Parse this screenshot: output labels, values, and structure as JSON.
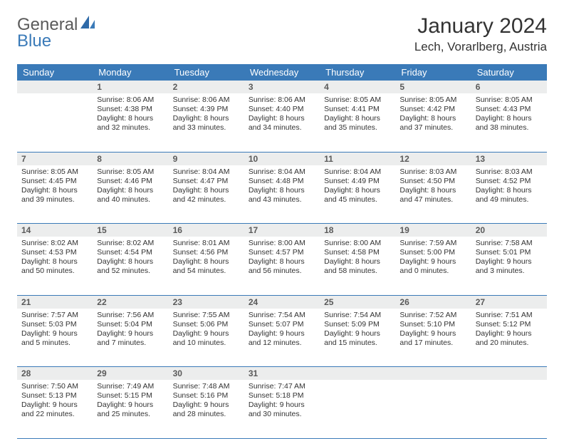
{
  "logo": {
    "text1": "General",
    "text2": "Blue"
  },
  "title": "January 2024",
  "location": "Lech, Vorarlberg, Austria",
  "colors": {
    "header_bg": "#3a7ab8",
    "header_text": "#ffffff",
    "daynum_bg": "#eceded",
    "daynum_text": "#5a5a5a",
    "cell_text": "#333333",
    "row_border": "#3a7ab8",
    "logo_gray": "#5a5a5a",
    "logo_blue": "#3a7ab8"
  },
  "fonts": {
    "title_size": 30,
    "location_size": 17,
    "dayheader_size": 13,
    "daynum_size": 12,
    "cell_size": 10.5
  },
  "day_headers": [
    "Sunday",
    "Monday",
    "Tuesday",
    "Wednesday",
    "Thursday",
    "Friday",
    "Saturday"
  ],
  "weeks": [
    [
      null,
      {
        "n": "1",
        "sr": "8:06 AM",
        "ss": "4:38 PM",
        "dl": "8 hours and 32 minutes."
      },
      {
        "n": "2",
        "sr": "8:06 AM",
        "ss": "4:39 PM",
        "dl": "8 hours and 33 minutes."
      },
      {
        "n": "3",
        "sr": "8:06 AM",
        "ss": "4:40 PM",
        "dl": "8 hours and 34 minutes."
      },
      {
        "n": "4",
        "sr": "8:05 AM",
        "ss": "4:41 PM",
        "dl": "8 hours and 35 minutes."
      },
      {
        "n": "5",
        "sr": "8:05 AM",
        "ss": "4:42 PM",
        "dl": "8 hours and 37 minutes."
      },
      {
        "n": "6",
        "sr": "8:05 AM",
        "ss": "4:43 PM",
        "dl": "8 hours and 38 minutes."
      }
    ],
    [
      {
        "n": "7",
        "sr": "8:05 AM",
        "ss": "4:45 PM",
        "dl": "8 hours and 39 minutes."
      },
      {
        "n": "8",
        "sr": "8:05 AM",
        "ss": "4:46 PM",
        "dl": "8 hours and 40 minutes."
      },
      {
        "n": "9",
        "sr": "8:04 AM",
        "ss": "4:47 PM",
        "dl": "8 hours and 42 minutes."
      },
      {
        "n": "10",
        "sr": "8:04 AM",
        "ss": "4:48 PM",
        "dl": "8 hours and 43 minutes."
      },
      {
        "n": "11",
        "sr": "8:04 AM",
        "ss": "4:49 PM",
        "dl": "8 hours and 45 minutes."
      },
      {
        "n": "12",
        "sr": "8:03 AM",
        "ss": "4:50 PM",
        "dl": "8 hours and 47 minutes."
      },
      {
        "n": "13",
        "sr": "8:03 AM",
        "ss": "4:52 PM",
        "dl": "8 hours and 49 minutes."
      }
    ],
    [
      {
        "n": "14",
        "sr": "8:02 AM",
        "ss": "4:53 PM",
        "dl": "8 hours and 50 minutes."
      },
      {
        "n": "15",
        "sr": "8:02 AM",
        "ss": "4:54 PM",
        "dl": "8 hours and 52 minutes."
      },
      {
        "n": "16",
        "sr": "8:01 AM",
        "ss": "4:56 PM",
        "dl": "8 hours and 54 minutes."
      },
      {
        "n": "17",
        "sr": "8:00 AM",
        "ss": "4:57 PM",
        "dl": "8 hours and 56 minutes."
      },
      {
        "n": "18",
        "sr": "8:00 AM",
        "ss": "4:58 PM",
        "dl": "8 hours and 58 minutes."
      },
      {
        "n": "19",
        "sr": "7:59 AM",
        "ss": "5:00 PM",
        "dl": "9 hours and 0 minutes."
      },
      {
        "n": "20",
        "sr": "7:58 AM",
        "ss": "5:01 PM",
        "dl": "9 hours and 3 minutes."
      }
    ],
    [
      {
        "n": "21",
        "sr": "7:57 AM",
        "ss": "5:03 PM",
        "dl": "9 hours and 5 minutes."
      },
      {
        "n": "22",
        "sr": "7:56 AM",
        "ss": "5:04 PM",
        "dl": "9 hours and 7 minutes."
      },
      {
        "n": "23",
        "sr": "7:55 AM",
        "ss": "5:06 PM",
        "dl": "9 hours and 10 minutes."
      },
      {
        "n": "24",
        "sr": "7:54 AM",
        "ss": "5:07 PM",
        "dl": "9 hours and 12 minutes."
      },
      {
        "n": "25",
        "sr": "7:54 AM",
        "ss": "5:09 PM",
        "dl": "9 hours and 15 minutes."
      },
      {
        "n": "26",
        "sr": "7:52 AM",
        "ss": "5:10 PM",
        "dl": "9 hours and 17 minutes."
      },
      {
        "n": "27",
        "sr": "7:51 AM",
        "ss": "5:12 PM",
        "dl": "9 hours and 20 minutes."
      }
    ],
    [
      {
        "n": "28",
        "sr": "7:50 AM",
        "ss": "5:13 PM",
        "dl": "9 hours and 22 minutes."
      },
      {
        "n": "29",
        "sr": "7:49 AM",
        "ss": "5:15 PM",
        "dl": "9 hours and 25 minutes."
      },
      {
        "n": "30",
        "sr": "7:48 AM",
        "ss": "5:16 PM",
        "dl": "9 hours and 28 minutes."
      },
      {
        "n": "31",
        "sr": "7:47 AM",
        "ss": "5:18 PM",
        "dl": "9 hours and 30 minutes."
      },
      null,
      null,
      null
    ]
  ],
  "labels": {
    "sunrise": "Sunrise:",
    "sunset": "Sunset:",
    "daylight": "Daylight:"
  }
}
